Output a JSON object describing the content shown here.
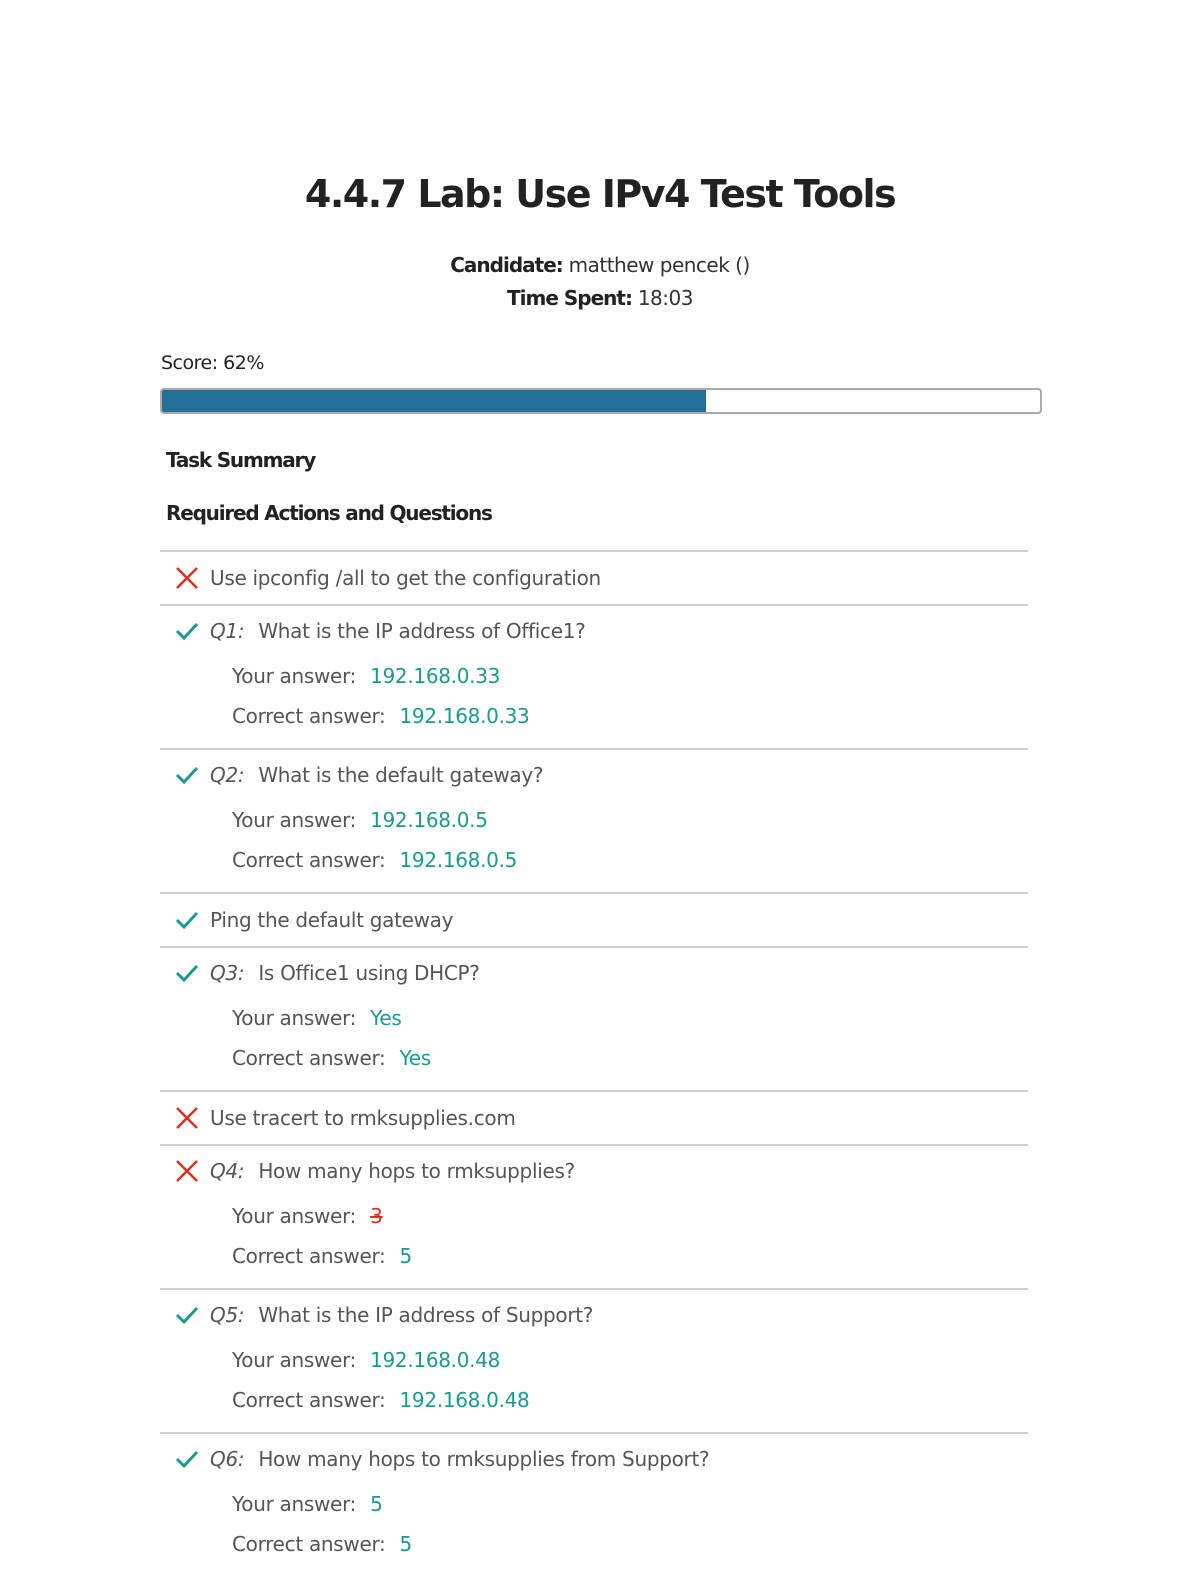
{
  "title": "4.4.7 Lab: Use IPv4 Test Tools",
  "candidate_label": "Candidate:",
  "candidate": "matthew pencek ()",
  "time_label": "Time Spent:",
  "time": "18:03",
  "score_text": "Score: 62%",
  "score_percent": 62,
  "task_summary": "Task Summary",
  "required_heading": "Required Actions and Questions",
  "your_answer_label": "Your answer:",
  "correct_answer_label": "Correct answer:",
  "colors": {
    "correct": "#1a9a8c",
    "incorrect": "#d9301e",
    "progress": "#236f97"
  },
  "items": [
    {
      "type": "action",
      "status": "incorrect",
      "text": "Use ipconfig /all to get the configuration"
    },
    {
      "type": "question",
      "status": "correct",
      "q": "Q1:",
      "text": "What is the IP address of Office1?",
      "your": "192.168.0.33",
      "correct": "192.168.0.33"
    },
    {
      "type": "question",
      "status": "correct",
      "q": "Q2:",
      "text": "What is the default gateway?",
      "your": "192.168.0.5",
      "correct": "192.168.0.5"
    },
    {
      "type": "action",
      "status": "correct",
      "text": "Ping the default gateway"
    },
    {
      "type": "question",
      "status": "correct",
      "q": "Q3:",
      "text": "Is Office1 using DHCP?",
      "your": "Yes",
      "correct": "Yes"
    },
    {
      "type": "action",
      "status": "incorrect",
      "text": "Use tracert to rmksupplies.com"
    },
    {
      "type": "question",
      "status": "incorrect",
      "q": "Q4:",
      "text": "How many hops to rmksupplies?",
      "your": "3",
      "correct": "5"
    },
    {
      "type": "question",
      "status": "correct",
      "q": "Q5:",
      "text": "What is the IP address of Support?",
      "your": "192.168.0.48",
      "correct": "192.168.0.48"
    },
    {
      "type": "question",
      "status": "correct",
      "q": "Q6:",
      "text": "How many hops to rmksupplies from Support?",
      "your": "5",
      "correct": "5"
    }
  ]
}
